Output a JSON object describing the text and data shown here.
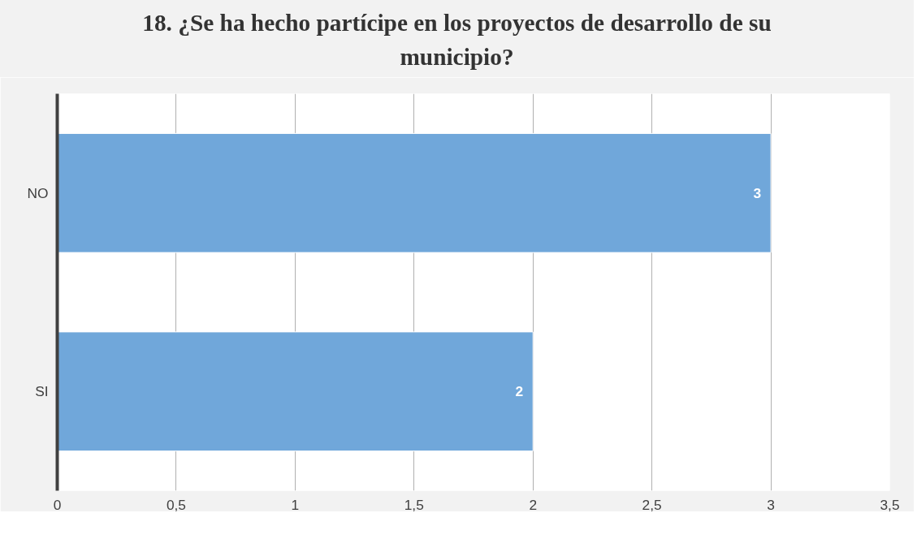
{
  "chart_data": {
    "type": "bar",
    "orientation": "horizontal",
    "title": "18. ¿Se ha hecho partícipe en los proyectos de desarrollo de su municipio?",
    "categories": [
      "NO",
      "SI"
    ],
    "values": [
      3,
      2
    ],
    "color": "#70a7da",
    "xlim": [
      0,
      3.5
    ],
    "xticks": [
      0,
      {
        "value": 0.5,
        "label": "0,5"
      },
      1,
      {
        "value": 1.5,
        "label": "1,5"
      },
      2,
      {
        "value": 2.5,
        "label": "2,5"
      },
      3,
      {
        "value": 3.5,
        "label": "3,5"
      }
    ],
    "grid": "x",
    "data_labels": true
  }
}
